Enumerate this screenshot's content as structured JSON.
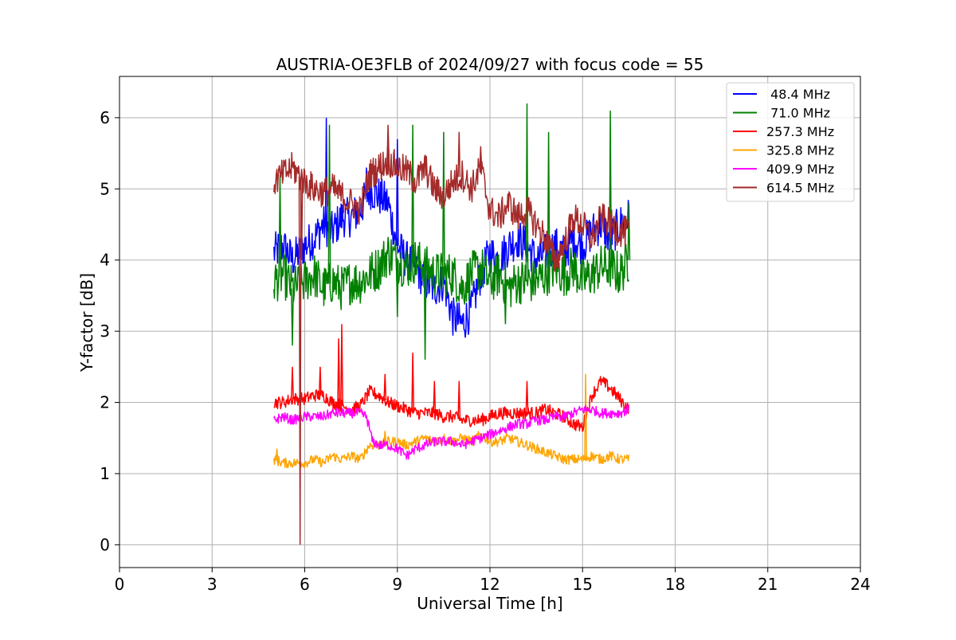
{
  "chart_data": {
    "type": "line",
    "title": "AUSTRIA-OE3FLB of 2024/09/27 with focus code = 55",
    "xlabel": "Universal Time [h]",
    "ylabel": "Y-factor [dB]",
    "xlim": [
      0,
      24
    ],
    "ylim": [
      -0.32,
      6.58
    ],
    "xticks": [
      0,
      3,
      6,
      9,
      12,
      15,
      18,
      21,
      24
    ],
    "yticks": [
      0,
      1,
      2,
      3,
      4,
      5,
      6
    ],
    "grid": true,
    "legend_position": "top-right",
    "series": [
      {
        "name": " 48.4 MHz",
        "color": "#0000ff",
        "x": [
          5.0,
          5.3,
          5.6,
          6.0,
          6.3,
          6.6,
          6.9,
          7.2,
          7.5,
          7.8,
          8.1,
          8.4,
          8.7,
          9.0,
          9.3,
          9.6,
          9.9,
          10.2,
          10.5,
          10.8,
          11.1,
          11.4,
          11.7,
          12.0,
          12.3,
          12.6,
          12.9,
          13.2,
          13.5,
          13.8,
          14.1,
          14.4,
          14.7,
          15.0,
          15.3,
          15.6,
          15.9,
          16.2,
          16.5
        ],
        "y": [
          4.1,
          4.2,
          4.0,
          4.2,
          4.3,
          4.5,
          4.4,
          4.6,
          4.6,
          4.7,
          5.0,
          4.9,
          4.8,
          4.2,
          4.0,
          3.9,
          3.7,
          3.6,
          3.7,
          3.2,
          3.1,
          3.3,
          3.8,
          4.1,
          4.0,
          4.2,
          4.3,
          4.2,
          4.0,
          4.1,
          4.2,
          4.1,
          4.3,
          4.2,
          4.4,
          4.5,
          4.3,
          4.5,
          4.6
        ],
        "spikes": [
          [
            6.7,
            6.0
          ],
          [
            8.0,
            5.3
          ],
          [
            9.0,
            5.7
          ]
        ]
      },
      {
        "name": " 71.0 MHz",
        "color": "#008000",
        "x": [
          5.0,
          5.3,
          5.6,
          6.0,
          6.3,
          6.6,
          6.9,
          7.2,
          7.5,
          7.8,
          8.1,
          8.4,
          8.7,
          9.0,
          9.3,
          9.6,
          9.9,
          10.2,
          10.5,
          10.8,
          11.1,
          11.4,
          11.7,
          12.0,
          12.3,
          12.6,
          12.9,
          13.2,
          13.5,
          13.8,
          14.1,
          14.4,
          14.7,
          15.0,
          15.3,
          15.6,
          15.9,
          16.2,
          16.5
        ],
        "y": [
          3.7,
          3.8,
          3.6,
          3.7,
          3.8,
          3.6,
          3.7,
          3.6,
          3.7,
          3.7,
          3.8,
          3.9,
          4.1,
          4.0,
          3.9,
          4.0,
          3.9,
          3.8,
          3.8,
          3.8,
          3.6,
          3.8,
          3.9,
          3.7,
          3.8,
          3.6,
          3.7,
          3.7,
          3.7,
          3.8,
          3.9,
          3.8,
          3.9,
          3.7,
          3.8,
          3.9,
          3.9,
          3.8,
          4.0
        ],
        "spikes": [
          [
            5.2,
            5.2
          ],
          [
            5.6,
            2.8
          ],
          [
            6.8,
            5.9
          ],
          [
            9.0,
            3.2
          ],
          [
            9.5,
            5.9
          ],
          [
            9.9,
            2.6
          ],
          [
            10.5,
            5.8
          ],
          [
            12.5,
            3.1
          ],
          [
            13.2,
            6.2
          ],
          [
            13.9,
            5.8
          ],
          [
            15.9,
            6.1
          ],
          [
            16.5,
            4.8
          ]
        ]
      },
      {
        "name": "257.3 MHz",
        "color": "#ff0000",
        "x": [
          5.0,
          5.3,
          5.6,
          6.0,
          6.3,
          6.6,
          6.9,
          7.2,
          7.5,
          7.8,
          8.1,
          8.4,
          8.7,
          9.0,
          9.3,
          9.6,
          9.9,
          10.2,
          10.5,
          10.8,
          11.1,
          11.4,
          11.7,
          12.0,
          12.3,
          12.6,
          12.9,
          13.2,
          13.5,
          13.8,
          14.1,
          14.4,
          14.7,
          15.0,
          15.3,
          15.6,
          15.9,
          16.2,
          16.5
        ],
        "y": [
          2.0,
          2.0,
          2.05,
          2.05,
          2.1,
          2.1,
          2.0,
          1.95,
          1.9,
          1.95,
          2.15,
          2.1,
          2.0,
          1.95,
          1.9,
          1.85,
          1.85,
          1.85,
          1.8,
          1.8,
          1.75,
          1.75,
          1.75,
          1.8,
          1.85,
          1.85,
          1.85,
          1.85,
          1.85,
          1.9,
          1.85,
          1.8,
          1.7,
          1.65,
          2.1,
          2.3,
          2.2,
          2.05,
          1.9
        ],
        "spikes": [
          [
            5.6,
            2.5
          ],
          [
            6.5,
            2.5
          ],
          [
            7.1,
            2.9
          ],
          [
            7.2,
            3.1
          ],
          [
            8.6,
            2.4
          ],
          [
            9.5,
            2.7
          ],
          [
            10.2,
            2.3
          ],
          [
            11.0,
            2.3
          ],
          [
            13.2,
            2.3
          ]
        ]
      },
      {
        "name": "325.8 MHz",
        "color": "#ffa500",
        "x": [
          5.0,
          5.3,
          5.6,
          6.0,
          6.3,
          6.6,
          6.9,
          7.2,
          7.5,
          7.8,
          8.1,
          8.4,
          8.7,
          9.0,
          9.3,
          9.6,
          9.9,
          10.2,
          10.5,
          10.8,
          11.1,
          11.4,
          11.7,
          12.0,
          12.3,
          12.6,
          12.9,
          13.2,
          13.5,
          13.8,
          14.1,
          14.4,
          14.7,
          15.0,
          15.3,
          15.6,
          15.9,
          16.2,
          16.5
        ],
        "y": [
          1.2,
          1.15,
          1.15,
          1.15,
          1.2,
          1.15,
          1.25,
          1.2,
          1.25,
          1.2,
          1.4,
          1.4,
          1.45,
          1.45,
          1.4,
          1.45,
          1.5,
          1.45,
          1.5,
          1.45,
          1.5,
          1.45,
          1.55,
          1.45,
          1.45,
          1.5,
          1.45,
          1.4,
          1.35,
          1.3,
          1.25,
          1.2,
          1.2,
          1.2,
          1.25,
          1.2,
          1.25,
          1.2,
          1.2
        ],
        "spikes": [
          [
            5.1,
            1.35
          ],
          [
            8.6,
            1.6
          ],
          [
            15.1,
            2.4
          ]
        ]
      },
      {
        "name": "409.9 MHz",
        "color": "#ff00ff",
        "x": [
          5.0,
          5.3,
          5.6,
          6.0,
          6.3,
          6.6,
          6.9,
          7.2,
          7.5,
          7.8,
          8.0,
          8.2,
          8.4,
          8.7,
          9.0,
          9.3,
          9.6,
          9.9,
          10.2,
          10.5,
          10.8,
          11.1,
          11.4,
          11.7,
          12.0,
          12.3,
          12.6,
          12.9,
          13.2,
          13.5,
          13.8,
          14.1,
          14.4,
          14.7,
          15.0,
          15.3,
          15.6,
          15.9,
          16.2,
          16.5
        ],
        "y": [
          1.75,
          1.8,
          1.75,
          1.8,
          1.8,
          1.8,
          1.85,
          1.85,
          1.85,
          1.85,
          1.8,
          1.45,
          1.4,
          1.4,
          1.35,
          1.25,
          1.35,
          1.4,
          1.45,
          1.45,
          1.45,
          1.4,
          1.45,
          1.5,
          1.55,
          1.6,
          1.65,
          1.7,
          1.7,
          1.75,
          1.75,
          1.8,
          1.8,
          1.85,
          1.9,
          1.9,
          1.85,
          1.85,
          1.85,
          1.9
        ],
        "spikes": []
      },
      {
        "name": "614.5 MHz",
        "color": "#a52a2a",
        "x": [
          5.0,
          5.3,
          5.6,
          6.0,
          6.3,
          6.6,
          6.9,
          7.2,
          7.5,
          7.8,
          8.1,
          8.4,
          8.7,
          9.0,
          9.3,
          9.6,
          9.9,
          10.2,
          10.5,
          10.8,
          11.1,
          11.4,
          11.7,
          12.0,
          12.3,
          12.6,
          12.9,
          13.2,
          13.5,
          13.8,
          14.1,
          14.4,
          14.7,
          15.0,
          15.3,
          15.6,
          15.9,
          16.2,
          16.5
        ],
        "y": [
          5.1,
          5.2,
          5.3,
          5.1,
          5.0,
          4.95,
          5.0,
          4.9,
          4.8,
          4.7,
          5.2,
          5.3,
          5.4,
          5.3,
          5.25,
          5.1,
          5.3,
          5.0,
          4.9,
          5.1,
          5.2,
          5.0,
          5.3,
          4.7,
          4.6,
          4.8,
          4.6,
          4.7,
          4.5,
          4.3,
          4.0,
          4.2,
          4.6,
          4.5,
          4.3,
          4.6,
          4.5,
          4.4,
          4.4
        ],
        "spikes": [
          [
            5.85,
            0.0
          ],
          [
            5.9,
            4.0
          ],
          [
            8.7,
            5.9
          ],
          [
            11.0,
            5.8
          ],
          [
            11.7,
            5.6
          ]
        ]
      }
    ]
  }
}
